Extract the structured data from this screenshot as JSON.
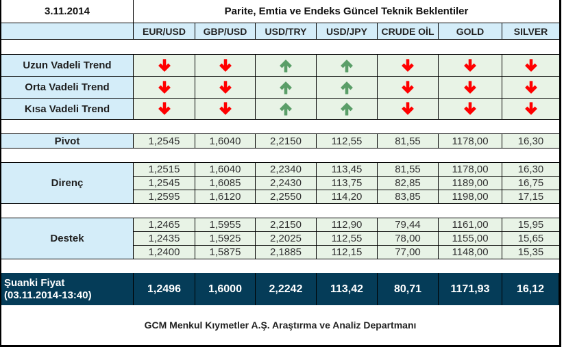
{
  "header": {
    "date": "3.11.2014",
    "title": "Parite, Emtia ve Endeks Güncel Teknik Beklentiler"
  },
  "columns": [
    "EUR/USD",
    "GBP/USD",
    "USD/TRY",
    "USD/JPY",
    "CRUDE OİL",
    "GOLD",
    "SILVER"
  ],
  "colors": {
    "label_bg": "#d4edf9",
    "value_bg": "#e8f3e6",
    "down_arrow": "#ff0000",
    "up_arrow": "#5a9e68",
    "current_price_bg": "#053c58"
  },
  "trends": [
    {
      "label": "Uzun Vadeli Trend",
      "directions": [
        "down",
        "down",
        "up",
        "up",
        "down",
        "down",
        "down"
      ]
    },
    {
      "label": "Orta Vadeli Trend",
      "directions": [
        "down",
        "down",
        "up",
        "up",
        "down",
        "down",
        "down"
      ]
    },
    {
      "label": "Kısa Vadeli Trend",
      "directions": [
        "down",
        "down",
        "up",
        "up",
        "down",
        "down",
        "down"
      ]
    }
  ],
  "pivot": {
    "label": "Pivot",
    "values": [
      "1,2545",
      "1,6040",
      "2,2150",
      "112,55",
      "81,55",
      "1178,00",
      "16,30"
    ]
  },
  "resistance": {
    "label": "Direnç",
    "rows": [
      [
        "1,2515",
        "1,6040",
        "2,2340",
        "113,45",
        "81,55",
        "1178,00",
        "16,30"
      ],
      [
        "1,2545",
        "1,6085",
        "2,2430",
        "113,75",
        "82,85",
        "1189,00",
        "16,75"
      ],
      [
        "1,2595",
        "1,6120",
        "2,2550",
        "114,20",
        "83,85",
        "1198,00",
        "17,15"
      ]
    ]
  },
  "support": {
    "label": "Destek",
    "rows": [
      [
        "1,2465",
        "1,5955",
        "2,2150",
        "112,90",
        "79,44",
        "1161,00",
        "15,95"
      ],
      [
        "1,2435",
        "1,5925",
        "2,2025",
        "112,55",
        "78,00",
        "1155,00",
        "15,65"
      ],
      [
        "1,2400",
        "1,5875",
        "2,1885",
        "112,15",
        "77,00",
        "1148,00",
        "15,35"
      ]
    ]
  },
  "current_price": {
    "label_line1": "Şuanki Fiyat",
    "label_line2": "(03.11.2014-13:40)",
    "values": [
      "1,2496",
      "1,6000",
      "2,2242",
      "113,42",
      "80,71",
      "1171,93",
      "16,12"
    ]
  },
  "footer": {
    "text": "GCM Menkul Kıymetler A.Ş. Araştırma ve Analiz Departmanı"
  }
}
